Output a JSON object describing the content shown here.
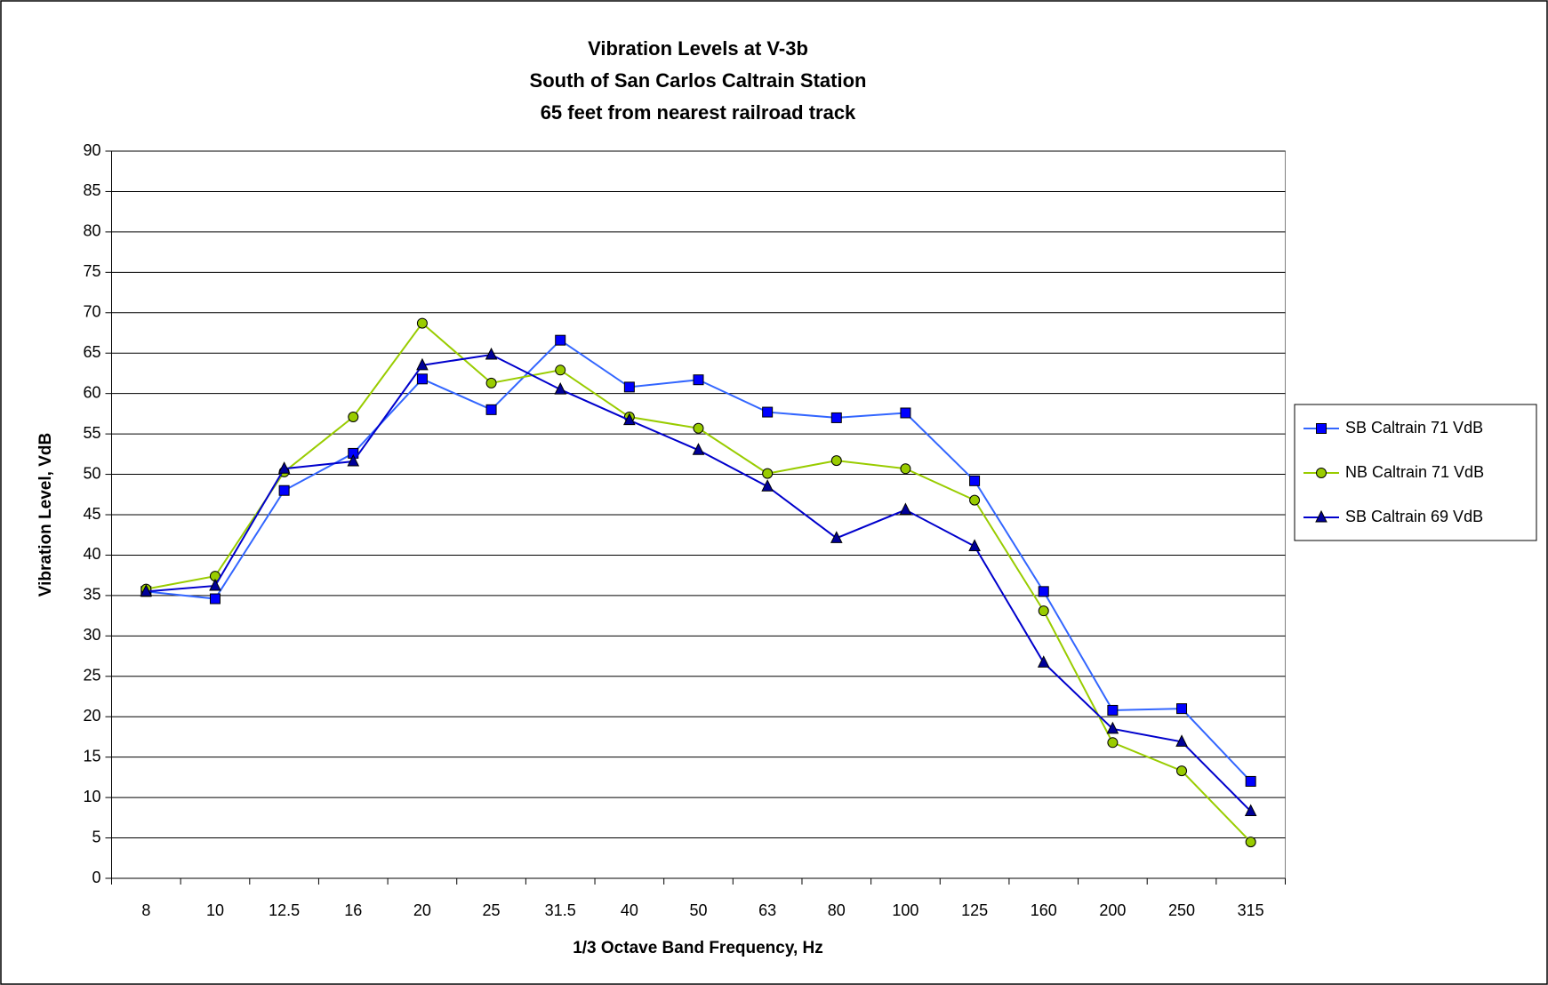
{
  "chart_data": {
    "type": "line",
    "title": [
      "Vibration Levels at V-3b",
      "South of San Carlos Caltrain Station",
      "65 feet from nearest railroad track"
    ],
    "x_label": "1/3 Octave Band Frequency, Hz",
    "y_label": "Vibration Level, VdB",
    "categories": [
      "8",
      "10",
      "12.5",
      "16",
      "20",
      "25",
      "31.5",
      "40",
      "50",
      "63",
      "80",
      "100",
      "125",
      "160",
      "200",
      "250",
      "315"
    ],
    "series": [
      {
        "name": "SB Caltrain 71 VdB",
        "color": "#3366ff",
        "marker": "square",
        "marker_color": "#0000ff",
        "values": [
          35.5,
          34.6,
          48,
          52.6,
          61.8,
          58,
          66.6,
          60.8,
          61.7,
          57.7,
          57,
          57.6,
          49.2,
          35.5,
          20.8,
          21,
          12
        ]
      },
      {
        "name": "NB Caltrain 71 VdB",
        "color": "#99cc00",
        "marker": "circle",
        "marker_color": "#99cc00",
        "values": [
          35.8,
          37.4,
          50.3,
          57.1,
          68.7,
          61.3,
          62.9,
          57.1,
          55.7,
          50.1,
          51.7,
          50.7,
          46.8,
          33.1,
          16.8,
          13.3,
          4.5
        ]
      },
      {
        "name": "SB Caltrain 69 VdB",
        "color": "#0000cc",
        "marker": "triangle",
        "marker_color": "#000099",
        "values": [
          35.5,
          36.2,
          50.7,
          51.6,
          63.5,
          64.8,
          60.5,
          56.7,
          53,
          48.5,
          42.1,
          45.6,
          41.1,
          26.7,
          18.5,
          16.9,
          8.3
        ]
      }
    ],
    "ylim": [
      0,
      90
    ],
    "yticks": [
      0,
      5,
      10,
      15,
      20,
      25,
      30,
      35,
      40,
      45,
      50,
      55,
      60,
      65,
      70,
      75,
      80,
      85,
      90
    ],
    "grid": true,
    "legend": "right"
  }
}
